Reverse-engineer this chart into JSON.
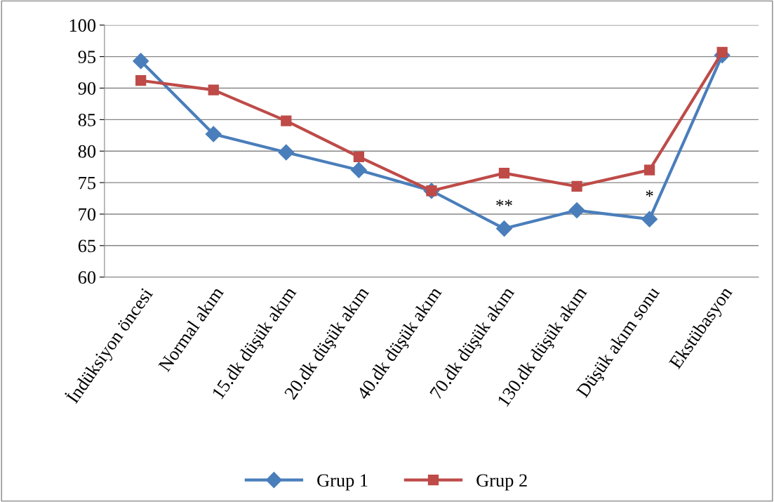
{
  "chart_data": {
    "type": "line",
    "categories": [
      "İndüksiyon öncesi",
      "Normal akım",
      "15.dk düşük akım",
      "20.dk düşük akım",
      "40.dk düşük akım",
      "70.dk düşük akım",
      "130.dk düşük akım",
      "Düşük akım sonu",
      "Ekstübasyon"
    ],
    "series": [
      {
        "name": "Grup 1",
        "color": "#4a7ebb",
        "marker": "diamond",
        "values": [
          94.3,
          82.7,
          79.8,
          77.0,
          73.7,
          67.7,
          70.6,
          69.2,
          95.2
        ]
      },
      {
        "name": "Grup 2",
        "color": "#be4b48",
        "marker": "square",
        "values": [
          91.2,
          89.7,
          84.8,
          79.1,
          73.7,
          76.5,
          74.4,
          77.0,
          95.7
        ]
      }
    ],
    "ylim": [
      60,
      100
    ],
    "yticks": [
      60,
      65,
      70,
      75,
      80,
      85,
      90,
      95,
      100
    ],
    "grid": "y",
    "legend": "bottom",
    "line_style": "solid",
    "annotations": [
      {
        "text": "**",
        "x": "70.dk düşük akım",
        "y": 67.7
      },
      {
        "text": "*",
        "x": "Düşük akım sonu",
        "y": 69.2
      }
    ]
  }
}
